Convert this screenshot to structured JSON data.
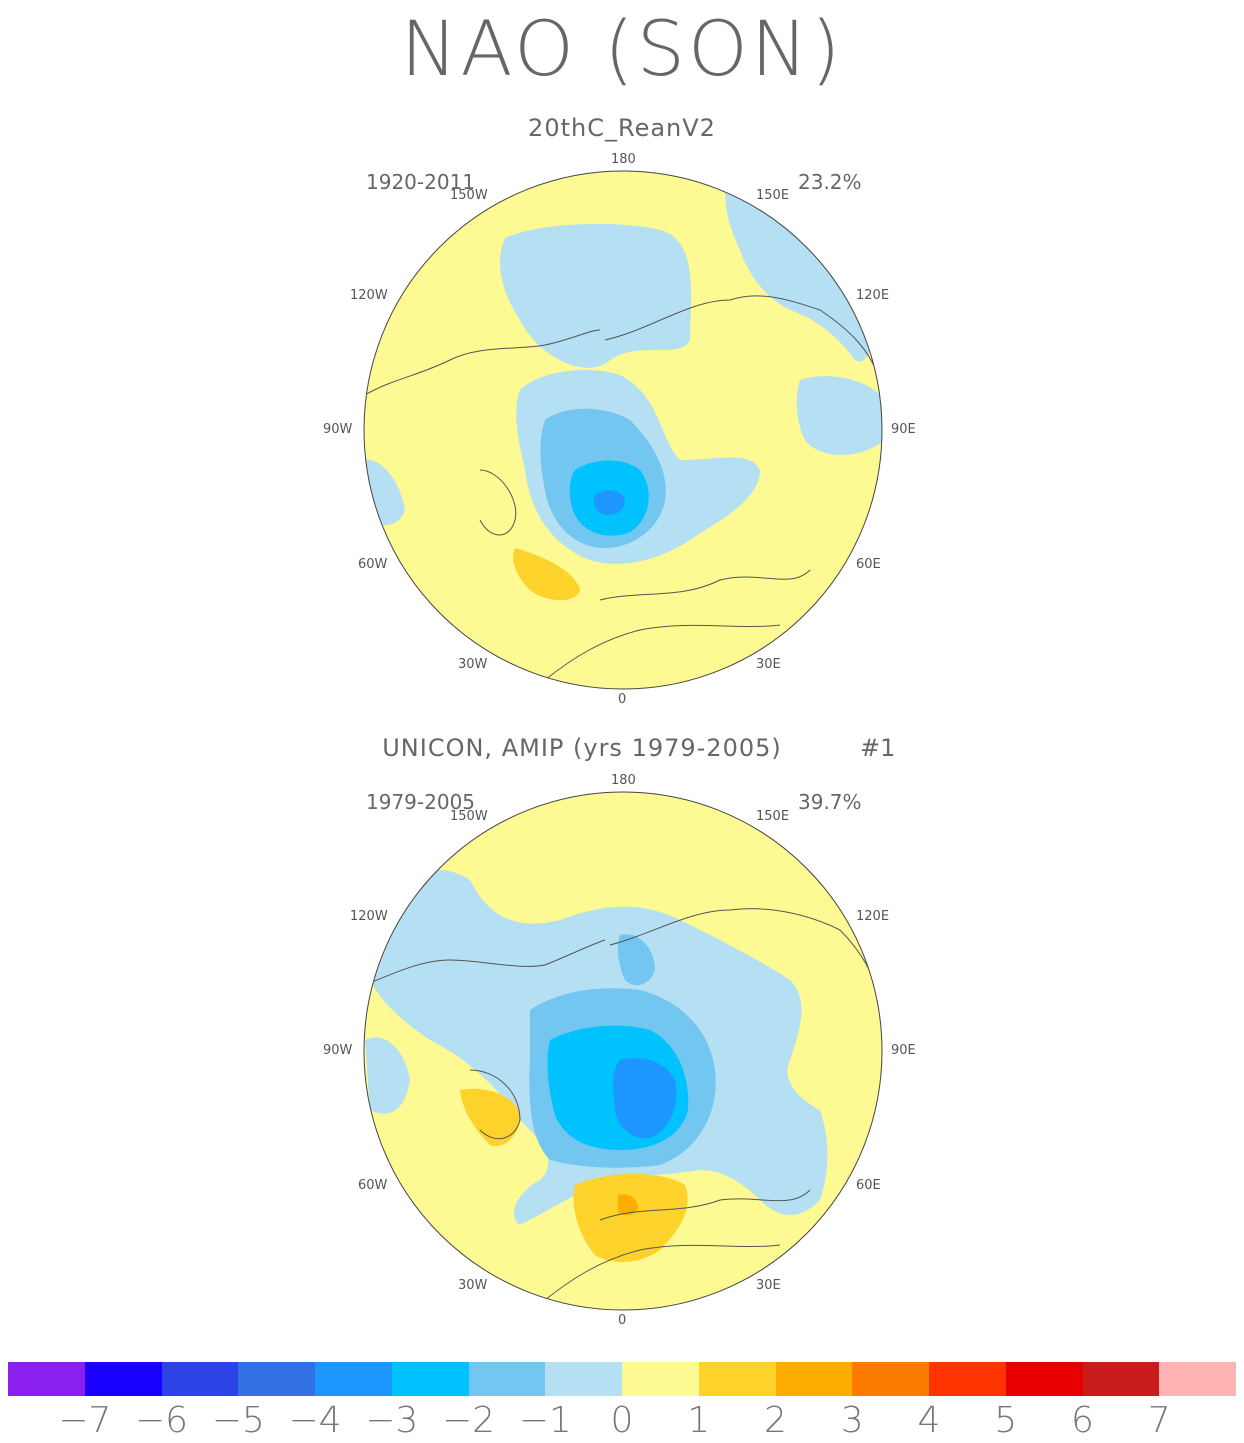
{
  "figure": {
    "title": "NAO (SON)"
  },
  "panels": [
    {
      "title": "20thC_ReanV2",
      "number": "",
      "period": "1920-2011",
      "variance": "23.2%",
      "lon_labels": [
        "180",
        "150E",
        "120E",
        "90E",
        "60E",
        "30E",
        "0",
        "30W",
        "60W",
        "90W",
        "120W",
        "150W"
      ]
    },
    {
      "title": "UNICON, AMIP (yrs 1979-2005)",
      "number": "#1",
      "period": "1979-2005",
      "variance": "39.7%",
      "lon_labels": [
        "180",
        "150E",
        "120E",
        "90E",
        "60E",
        "30E",
        "0",
        "30W",
        "60W",
        "90W",
        "120W",
        "150W"
      ]
    }
  ],
  "colorbar": {
    "colors": [
      "#8a1ff0",
      "#1a00ff",
      "#2c43e6",
      "#3171e4",
      "#1e96ff",
      "#00c2ff",
      "#73c6f0",
      "#b5dff2",
      "#fdf993",
      "#fdd22a",
      "#fdad00",
      "#fd7b00",
      "#fd3300",
      "#e80000",
      "#c91c1c",
      "#ffb3b3"
    ],
    "tick_labels": [
      "-7",
      "-6",
      "-5",
      "-4",
      "-3",
      "-2",
      "-1",
      "0",
      "1",
      "2",
      "3",
      "4",
      "5",
      "6",
      "7"
    ]
  }
}
